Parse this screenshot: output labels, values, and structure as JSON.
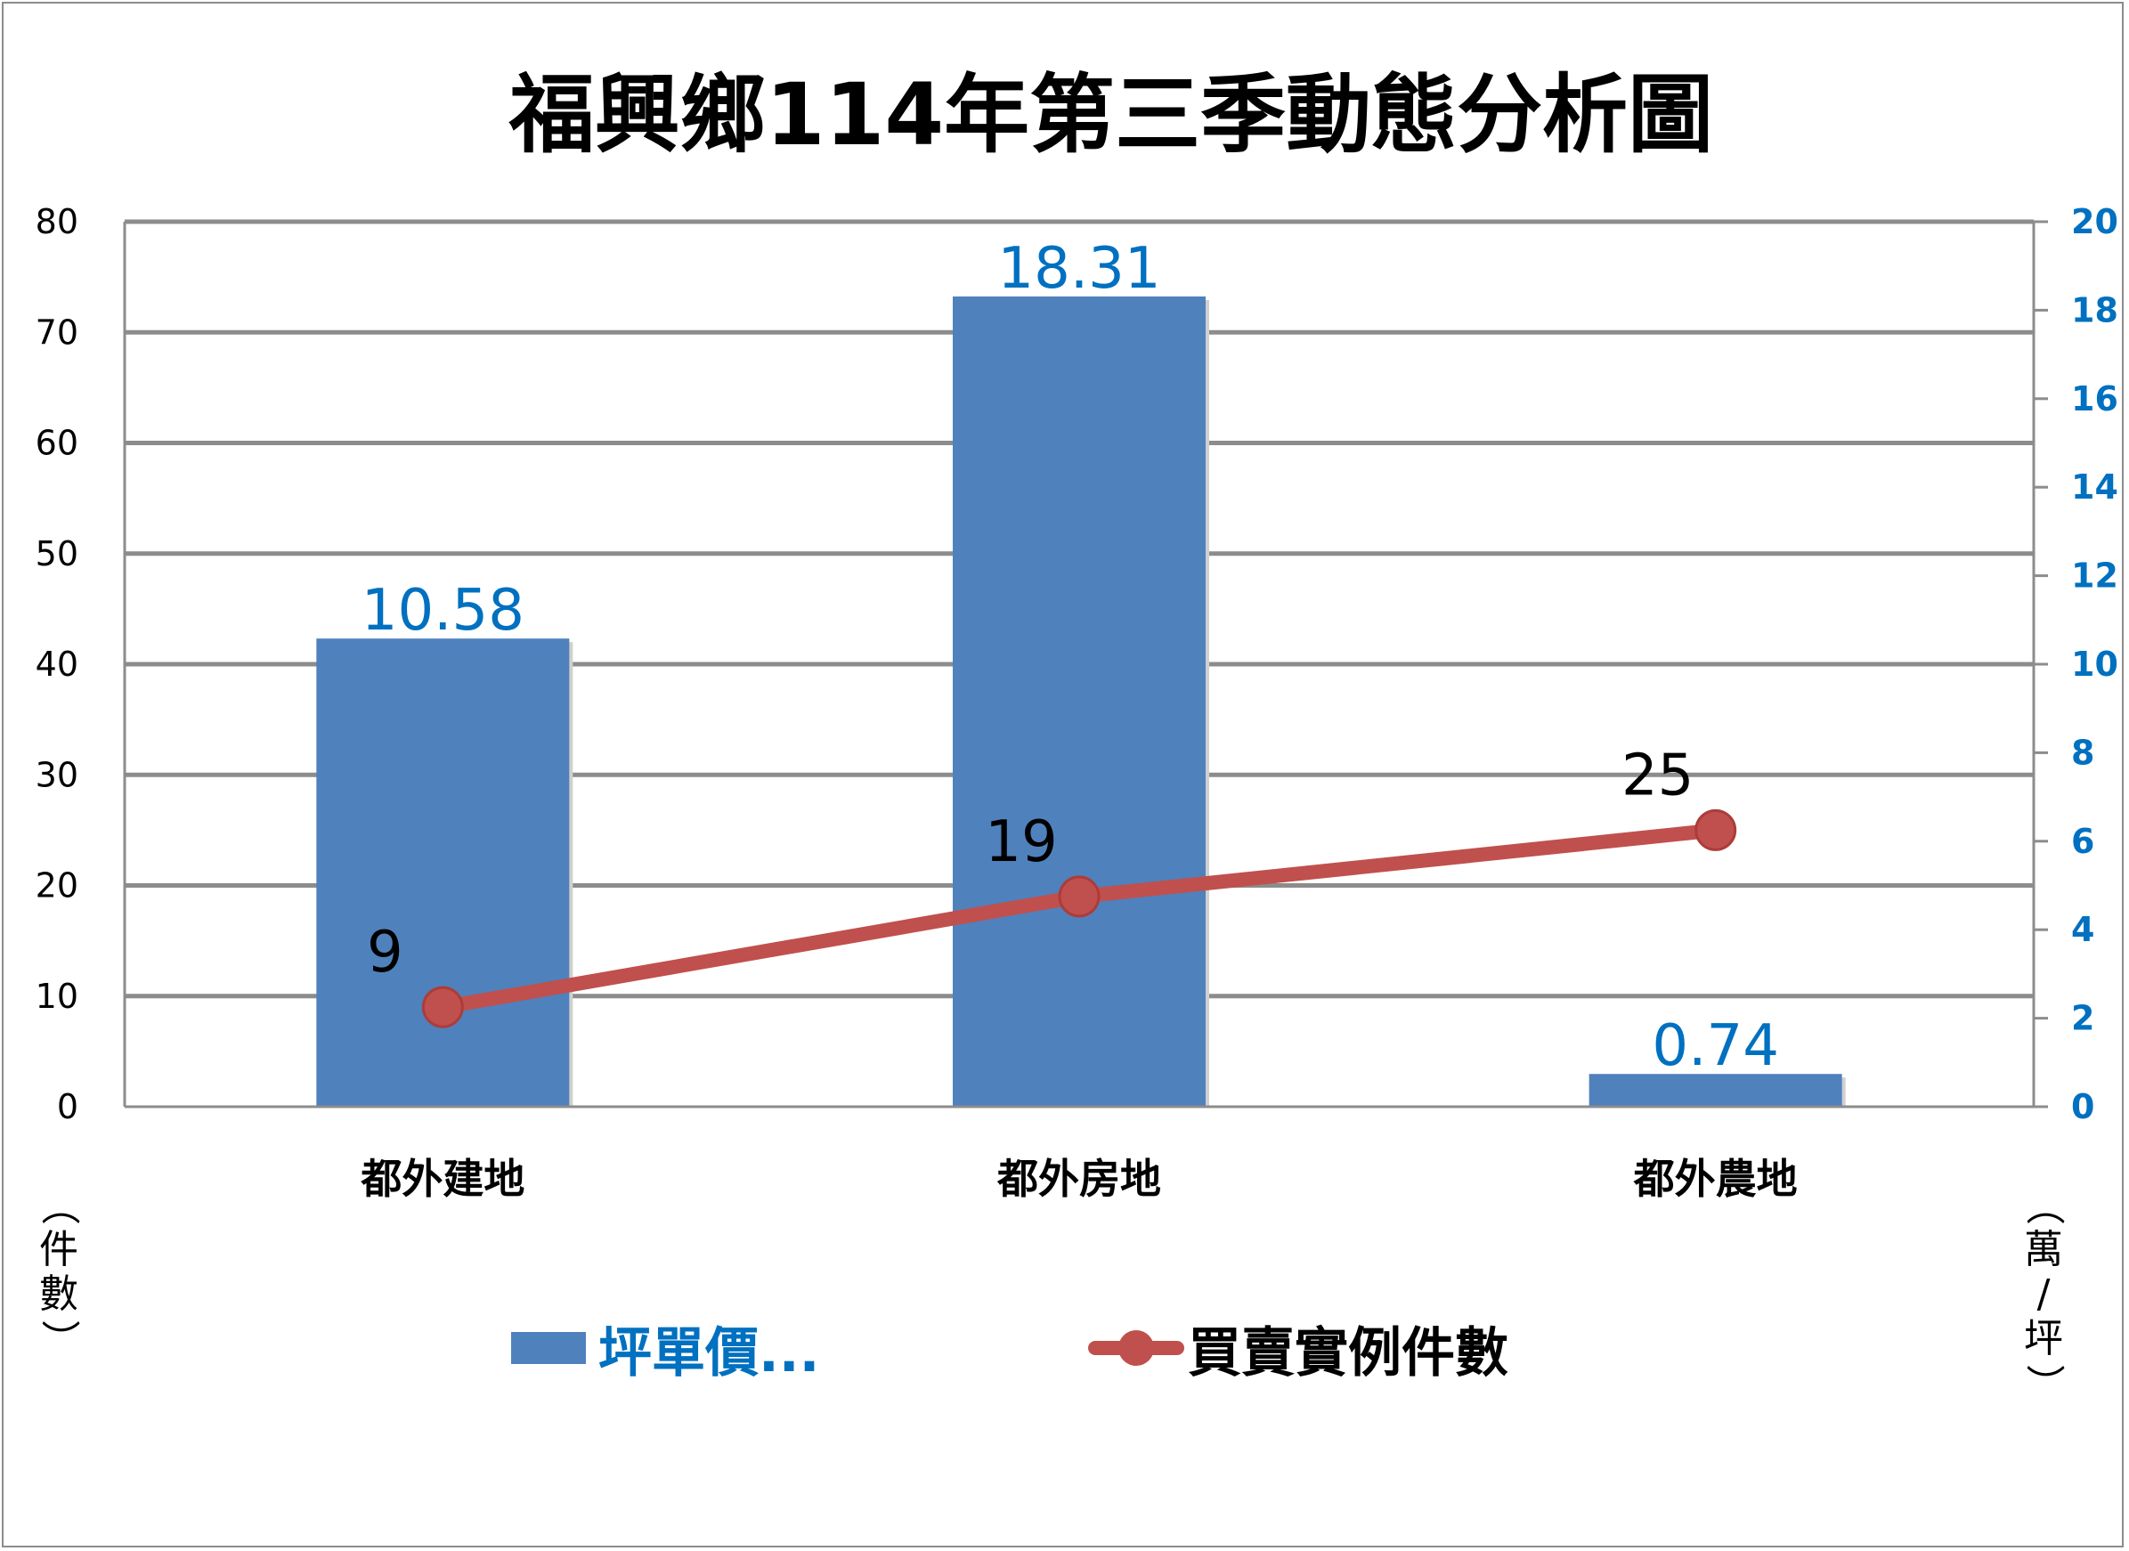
{
  "chart_data": {
    "type": "bar",
    "title": "福興鄉114年第三季動態分析圖",
    "categories": [
      "都外建地",
      "都外房地",
      "都外農地"
    ],
    "series": [
      {
        "name": "坪單價...",
        "type": "bar",
        "axis": "right",
        "values": [
          10.58,
          18.31,
          0.74
        ],
        "color": "#4f81bd",
        "label_color": "#0070c0"
      },
      {
        "name": "買賣實例件數",
        "type": "line",
        "axis": "left",
        "values": [
          9,
          19,
          25
        ],
        "color": "#c0504d",
        "label_color": "#000000"
      }
    ],
    "y_left": {
      "label": "（件數）",
      "ylim": [
        0,
        80
      ],
      "ticks": [
        0,
        10,
        20,
        30,
        40,
        50,
        60,
        70,
        80
      ]
    },
    "y_right": {
      "label": "（萬/坪）",
      "ylim": [
        0,
        20
      ],
      "ticks": [
        0,
        2,
        4,
        6,
        8,
        10,
        12,
        14,
        16,
        18,
        20
      ],
      "tick_color": "#0070c0"
    },
    "grid": true,
    "legend_position": "bottom"
  }
}
